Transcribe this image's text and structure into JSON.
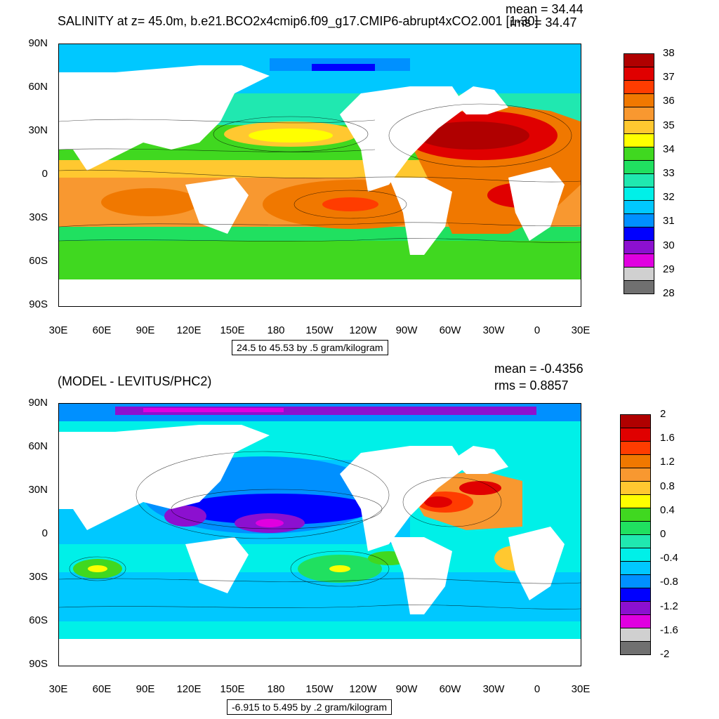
{
  "panel1": {
    "title": "SALINITY at z=  45.0m, b.e21.BCO2x4cmip6.f09_g17.CMIP6-abrupt4xCO2.001 [1-30]",
    "mean_label": "mean = 34.44",
    "rms_label": "rms = 34.47",
    "caption": "24.5 to 45.53 by .5 gram/kilogram",
    "lat_labels": [
      "90N",
      "60N",
      "30N",
      "0",
      "30S",
      "60S",
      "90S"
    ],
    "lon_labels": [
      "30E",
      "60E",
      "90E",
      "120E",
      "150E",
      "180",
      "150W",
      "120W",
      "90W",
      "60W",
      "30W",
      "0",
      "30E"
    ],
    "colorbar_labels": [
      "38",
      "37",
      "36",
      "35",
      "34",
      "33",
      "32",
      "31",
      "30",
      "29",
      "28"
    ],
    "colorbar_colors": [
      "#b00000",
      "#e00000",
      "#ff3c00",
      "#f07800",
      "#f89830",
      "#ffc830",
      "#ffff00",
      "#40d820",
      "#20e060",
      "#20e8b0",
      "#00f0e8",
      "#00c8ff",
      "#0090ff",
      "#0000ff",
      "#8c10d0",
      "#e000e0",
      "#d0d0d0",
      "#707070"
    ]
  },
  "panel2": {
    "title": "(MODEL - LEVITUS/PHC2)",
    "mean_label": "mean = -0.4356",
    "rms_label": "rms = 0.8857",
    "caption": "-6.915 to 5.495 by .2 gram/kilogram",
    "lat_labels": [
      "90N",
      "60N",
      "30N",
      "0",
      "30S",
      "60S",
      "90S"
    ],
    "lon_labels": [
      "30E",
      "60E",
      "90E",
      "120E",
      "150E",
      "180",
      "150W",
      "120W",
      "90W",
      "60W",
      "30W",
      "0",
      "30E"
    ],
    "colorbar_labels": [
      "2",
      "1.6",
      "1.2",
      "0.8",
      "0.4",
      "0",
      "-0.4",
      "-0.8",
      "-1.2",
      "-1.6",
      "-2"
    ],
    "colorbar_colors": [
      "#b00000",
      "#e00000",
      "#ff3c00",
      "#f07800",
      "#f89830",
      "#ffc830",
      "#ffff00",
      "#40d820",
      "#20e060",
      "#20e8b0",
      "#00f0e8",
      "#00c8ff",
      "#0090ff",
      "#0000ff",
      "#8c10d0",
      "#e000e0",
      "#d0d0d0",
      "#707070"
    ]
  }
}
